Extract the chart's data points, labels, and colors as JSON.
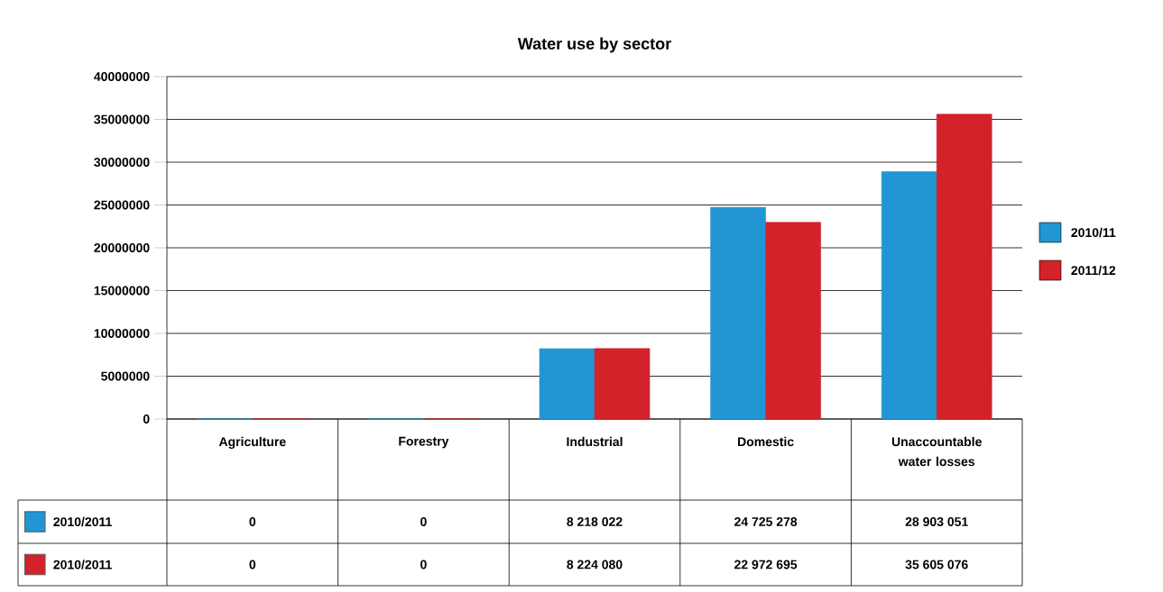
{
  "chart_data": {
    "type": "bar",
    "title": "Water use by sector",
    "categories": [
      "Agriculture",
      "Forestry",
      "Industrial",
      "Domestic",
      "Unaccountable water losses"
    ],
    "series": [
      {
        "name": "2010/11",
        "color": "#2196d3",
        "values": [
          0,
          0,
          8218022,
          24725278,
          28903051
        ],
        "value_labels": [
          "0",
          "0",
          "8 218 022",
          "24 725 278",
          "28 903 051"
        ]
      },
      {
        "name": "2011/12",
        "color": "#d3222a",
        "values": [
          0,
          0,
          8224080,
          22972695,
          35605076
        ],
        "value_labels": [
          "0",
          "0",
          "8 224 080",
          "22 972 695",
          "35 605 076"
        ]
      }
    ],
    "annotations": [
      "2010/2011",
      "2010/2011"
    ],
    "ylim": [
      0,
      40000000
    ],
    "yticks": [
      0,
      5000000,
      10000000,
      15000000,
      20000000,
      25000000,
      30000000,
      35000000,
      40000000
    ],
    "grid": "y",
    "legend": "right"
  }
}
